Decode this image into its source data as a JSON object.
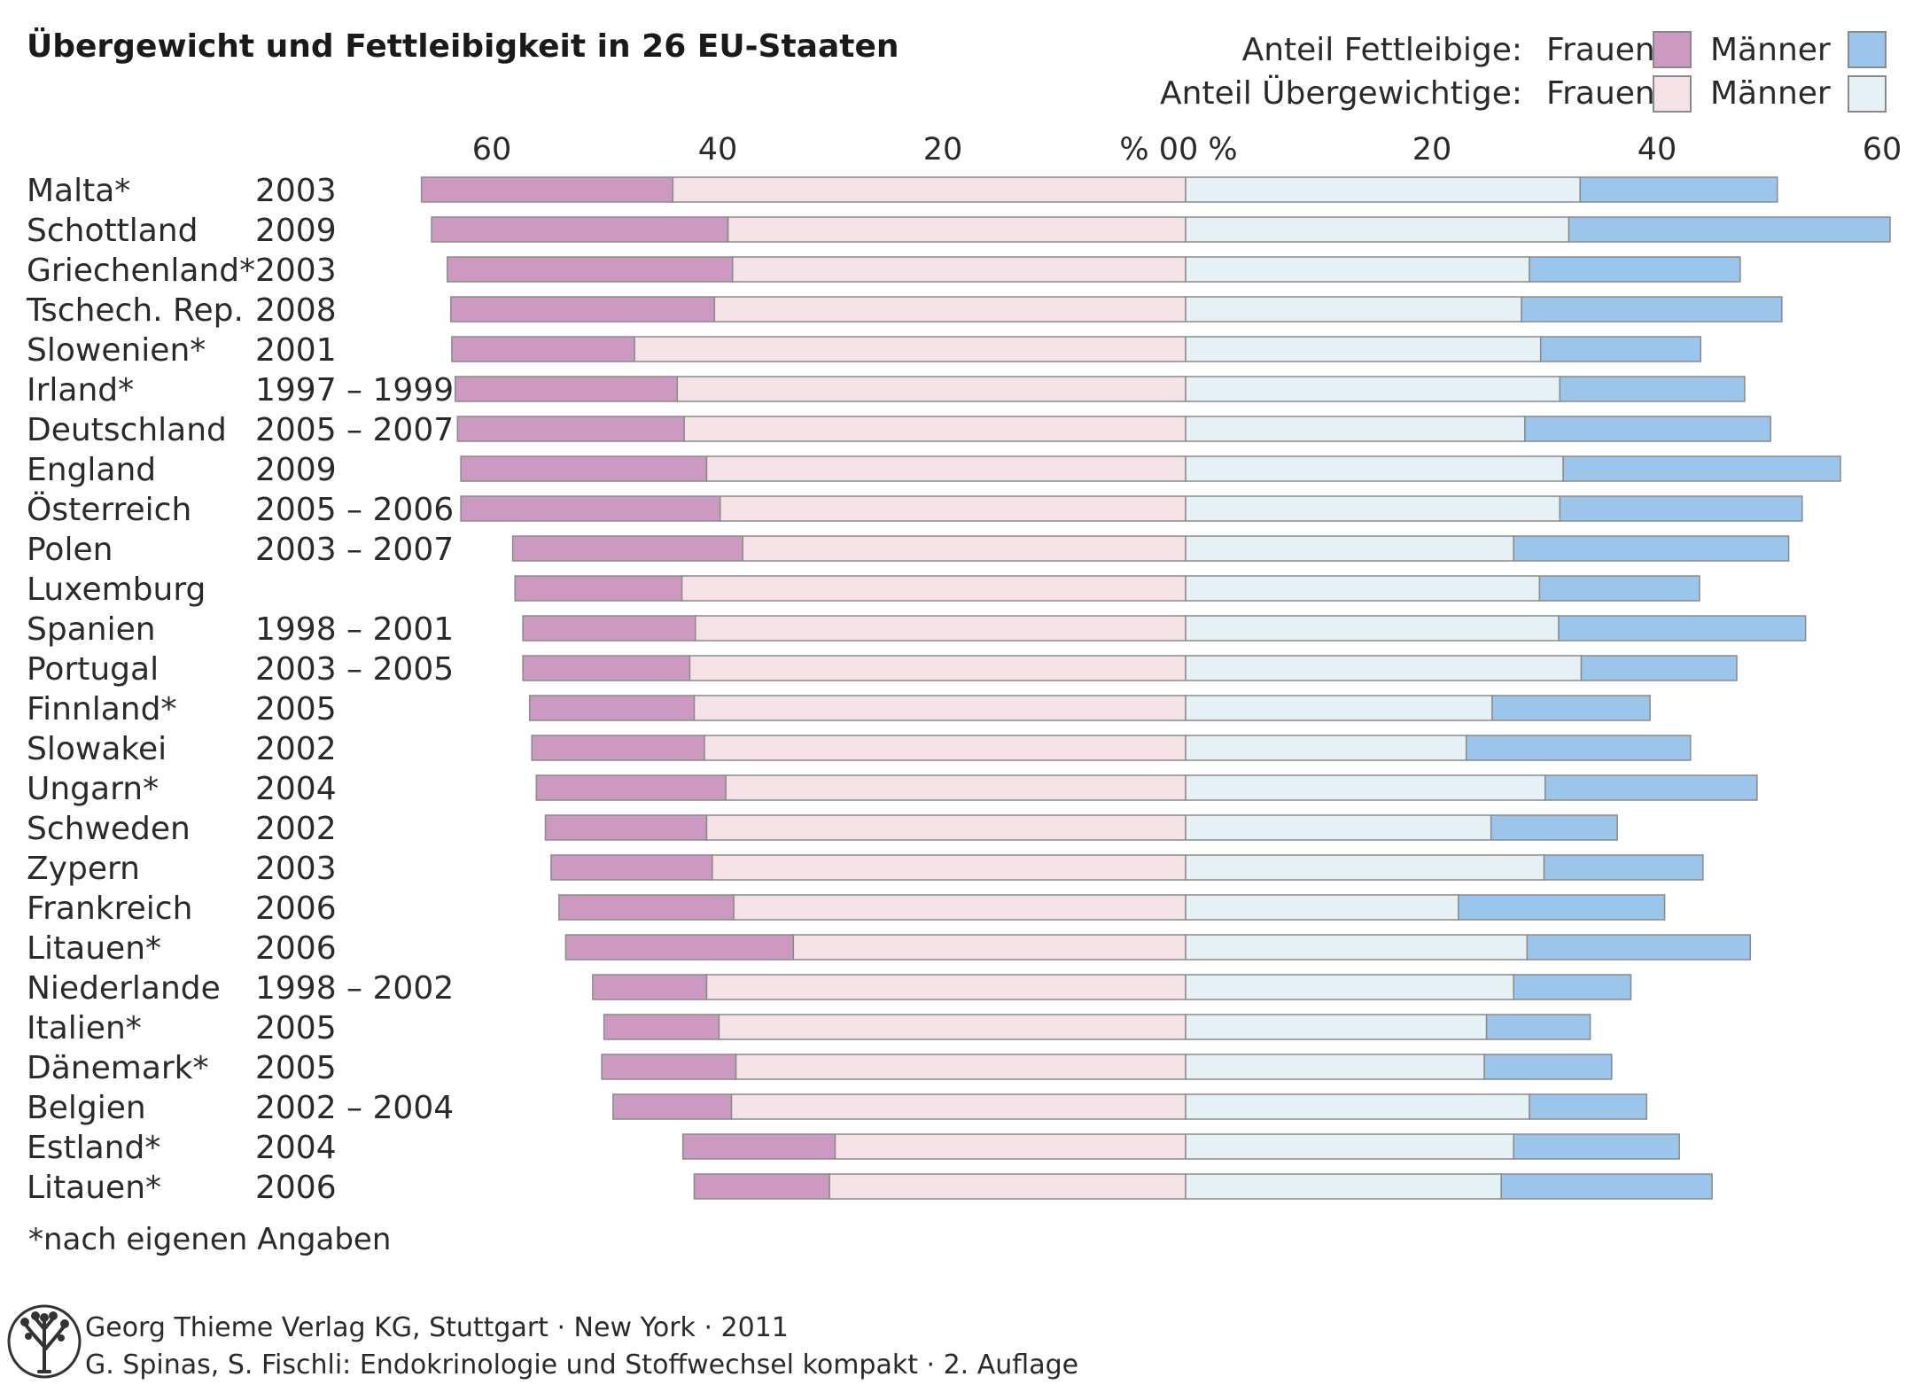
{
  "chart_data": {
    "type": "bar",
    "title": "Übergewicht und Fettleibigkeit in 26 EU-Staaten",
    "legend": {
      "row1_label": "Anteil Fettleibige:",
      "row2_label": "Anteil Übergewichtige:",
      "women": "Frauen",
      "men": "Männer"
    },
    "x_axis": {
      "left_ticks": [
        "60",
        "40",
        "20"
      ],
      "right_ticks": [
        "20",
        "40",
        "60"
      ],
      "left_zero": "% 0",
      "right_zero": "0 %",
      "range": [
        0,
        60
      ]
    },
    "colors": {
      "women_obese": "#cc99c0",
      "women_overweight": "#f5e2e6",
      "men_obese": "#9cc5ec",
      "men_overweight": "#e6f1f6",
      "border": "#8a8a8a"
    },
    "rows": [
      {
        "country": "Malta*",
        "year": "2003",
        "women_overweight": 45.5,
        "women_obese": 22.3,
        "men_overweight": 35.0,
        "men_obese": 17.5
      },
      {
        "country": "Schottland",
        "year": "2009",
        "women_overweight": 40.6,
        "women_obese": 26.3,
        "men_overweight": 34.0,
        "men_obese": 28.5
      },
      {
        "country": "Griechenland*",
        "year": "2003",
        "women_overweight": 40.2,
        "women_obese": 25.3,
        "men_overweight": 30.5,
        "men_obese": 18.7
      },
      {
        "country": "Tschech. Rep.",
        "year": "2008",
        "women_overweight": 41.8,
        "women_obese": 23.4,
        "men_overweight": 29.8,
        "men_obese": 23.1
      },
      {
        "country": "Slowenien*",
        "year": "2001",
        "women_overweight": 48.9,
        "women_obese": 16.2,
        "men_overweight": 31.5,
        "men_obese": 14.2
      },
      {
        "country": "Irland*",
        "year": "1997 – 1999",
        "women_overweight": 45.1,
        "women_obese": 19.7,
        "men_overweight": 33.2,
        "men_obese": 16.4
      },
      {
        "country": "Deutschland",
        "year": "2005 – 2007",
        "women_overweight": 44.5,
        "women_obese": 20.1,
        "men_overweight": 30.1,
        "men_obese": 21.8
      },
      {
        "country": "England",
        "year": "2009",
        "women_overweight": 42.5,
        "women_obese": 21.8,
        "men_overweight": 33.5,
        "men_obese": 24.6
      },
      {
        "country": "Österreich",
        "year": "2005 – 2006",
        "women_overweight": 41.3,
        "women_obese": 23.0,
        "men_overweight": 33.2,
        "men_obese": 21.5
      },
      {
        "country": "Polen",
        "year": "2003 – 2007",
        "women_overweight": 39.3,
        "women_obese": 20.4,
        "men_overweight": 29.1,
        "men_obese": 24.4
      },
      {
        "country": "Luxemburg",
        "year": "",
        "women_overweight": 44.7,
        "women_obese": 14.8,
        "men_overweight": 31.4,
        "men_obese": 14.2
      },
      {
        "country": "Spanien",
        "year": "1998 – 2001",
        "women_overweight": 43.5,
        "women_obese": 15.3,
        "men_overweight": 33.1,
        "men_obese": 21.9
      },
      {
        "country": "Portugal",
        "year": "2003 – 2005",
        "women_overweight": 44.0,
        "women_obese": 14.8,
        "men_overweight": 35.1,
        "men_obese": 13.8
      },
      {
        "country": "Finnland*",
        "year": "2005",
        "women_overweight": 43.6,
        "women_obese": 14.6,
        "men_overweight": 27.2,
        "men_obese": 14.0
      },
      {
        "country": "Slowakei",
        "year": "2002",
        "women_overweight": 42.7,
        "women_obese": 15.3,
        "men_overweight": 24.9,
        "men_obese": 19.9
      },
      {
        "country": "Ungarn*",
        "year": "2004",
        "women_overweight": 40.8,
        "women_obese": 16.8,
        "men_overweight": 31.9,
        "men_obese": 18.8
      },
      {
        "country": "Schweden",
        "year": "2002",
        "women_overweight": 42.5,
        "women_obese": 14.3,
        "men_overweight": 27.1,
        "men_obese": 11.2
      },
      {
        "country": "Zypern",
        "year": "2003",
        "women_overweight": 42.0,
        "women_obese": 14.3,
        "men_overweight": 31.8,
        "men_obese": 14.1
      },
      {
        "country": "Frankreich",
        "year": "2006",
        "women_overweight": 40.1,
        "women_obese": 15.5,
        "men_overweight": 24.2,
        "men_obese": 18.3
      },
      {
        "country": "Litauen*",
        "year": "2006",
        "women_overweight": 34.8,
        "women_obese": 20.2,
        "men_overweight": 30.3,
        "men_obese": 19.8
      },
      {
        "country": "Niederlande",
        "year": "1998 – 2002",
        "women_overweight": 42.5,
        "women_obese": 10.1,
        "men_overweight": 29.1,
        "men_obese": 10.4
      },
      {
        "country": "Italien*",
        "year": "2005",
        "women_overweight": 41.4,
        "women_obese": 10.2,
        "men_overweight": 26.7,
        "men_obese": 9.2
      },
      {
        "country": "Dänemark*",
        "year": "2005",
        "women_overweight": 39.9,
        "women_obese": 11.9,
        "men_overweight": 26.5,
        "men_obese": 11.3
      },
      {
        "country": "Belgien",
        "year": "2002 – 2004",
        "women_overweight": 40.3,
        "women_obese": 10.5,
        "men_overweight": 30.5,
        "men_obese": 10.4
      },
      {
        "country": "Estland*",
        "year": "2004",
        "women_overweight": 31.1,
        "women_obese": 13.5,
        "men_overweight": 29.1,
        "men_obese": 14.7
      },
      {
        "country": "Litauen*",
        "year": "2006",
        "women_overweight": 31.6,
        "women_obese": 12.0,
        "men_overweight": 28.0,
        "men_obese": 18.7
      }
    ],
    "footnote": "*nach eigenen Angaben"
  },
  "credits": {
    "line1": "Georg Thieme Verlag KG, Stuttgart · New York · 2011",
    "line2": "G. Spinas, S. Fischli: Endokrinologie und Stoffwechsel kompakt · 2. Auflage"
  }
}
